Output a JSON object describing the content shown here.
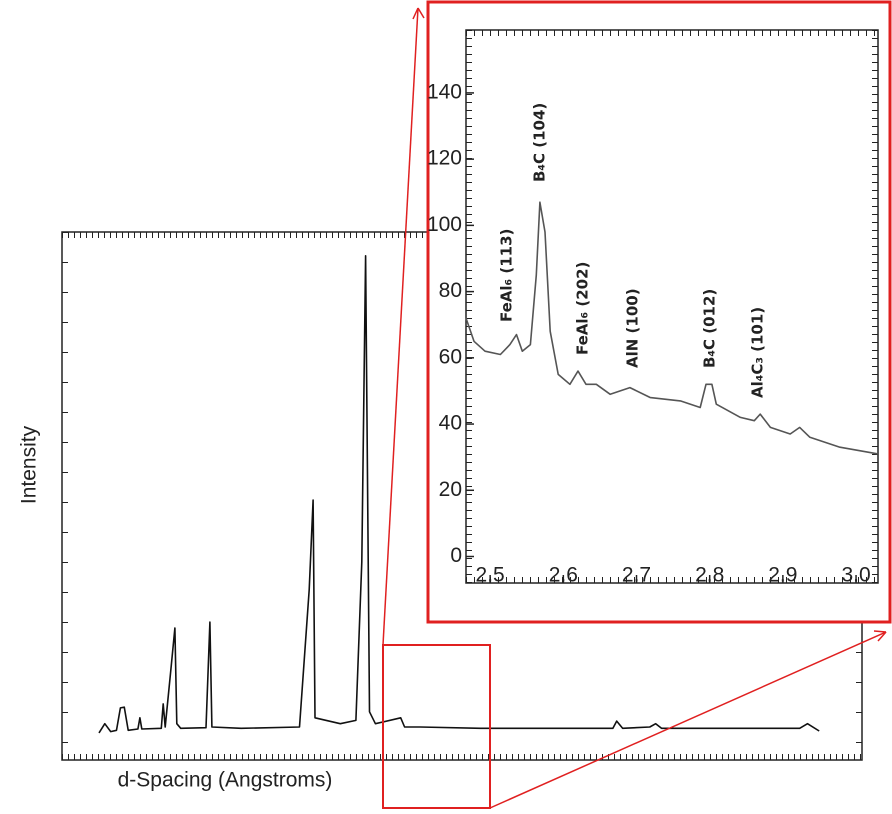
{
  "chart_data": [
    {
      "type": "line",
      "x_label": "d-Spacing (Angstroms)",
      "y_label": "Intensity",
      "color": "#111111",
      "xlim": [
        0.82,
        4.93
      ],
      "ylim": [
        0,
        800
      ],
      "x": [
        1.01,
        1.04,
        1.07,
        1.1,
        1.12,
        1.14,
        1.16,
        1.21,
        1.22,
        1.23,
        1.33,
        1.34,
        1.35,
        1.38,
        1.4,
        1.41,
        1.43,
        1.56,
        1.58,
        1.59,
        1.74,
        2.04,
        2.09,
        2.11,
        2.12,
        2.25,
        2.33,
        2.36,
        2.38,
        2.4,
        2.43,
        2.56,
        2.58,
        2.66,
        2.97,
        3.07,
        3.65,
        3.67,
        3.7,
        3.84,
        3.87,
        3.9,
        4.1,
        4.61,
        4.65,
        4.71
      ],
      "values": [
        41,
        55,
        43,
        45,
        79,
        80,
        45,
        47,
        64,
        47,
        48,
        85,
        50,
        139,
        200,
        55,
        48,
        49,
        209,
        50,
        48,
        50,
        258,
        394,
        64,
        55,
        60,
        300,
        764,
        73,
        55,
        64,
        50,
        50,
        48,
        48,
        48,
        59,
        48,
        50,
        55,
        48,
        48,
        48,
        55,
        44
      ]
    },
    {
      "type": "line",
      "color": "#555555",
      "xlim": [
        2.467,
        3.03
      ],
      "ylim": [
        -8,
        159
      ],
      "xticks": [
        2.5,
        2.6,
        2.7,
        2.8,
        2.9,
        {
          "value": 3,
          "label": "3.0"
        }
      ],
      "yticks": [
        0,
        20,
        40,
        60,
        80,
        100,
        120,
        140
      ],
      "x": [
        2.467,
        2.478,
        2.493,
        2.514,
        2.527,
        2.536,
        2.544,
        2.555,
        2.563,
        2.568,
        2.575,
        2.582,
        2.593,
        2.609,
        2.62,
        2.631,
        2.645,
        2.664,
        2.691,
        2.719,
        2.76,
        2.787,
        2.795,
        2.803,
        2.809,
        2.842,
        2.861,
        2.869,
        2.883,
        2.91,
        2.923,
        2.937,
        2.978,
        3.03
      ],
      "values": [
        72,
        65,
        62,
        61,
        64,
        67,
        62,
        64,
        85,
        107,
        98,
        68,
        55,
        52,
        56,
        52,
        52,
        49,
        51,
        48,
        47,
        45,
        52,
        52,
        46,
        42,
        41,
        43,
        39,
        37,
        39,
        36,
        33,
        31
      ],
      "annotations": [
        "FeAl₆ (113)",
        "B₄C (104)",
        "FeAl₆ (202)",
        "AlN (100)",
        "B₄C (012)",
        "Al₄C₃ (101)"
      ]
    }
  ]
}
